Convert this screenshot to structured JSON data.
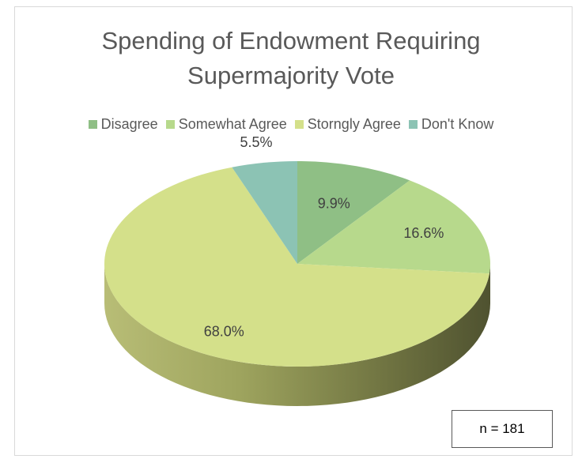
{
  "chart_data": {
    "type": "pie",
    "title": "Spending of Endowment Requiring Supermajority Vote",
    "title_lines": [
      "Spending of Endowment Requiring",
      "Supermajority Vote"
    ],
    "legend_position": "top",
    "categories": [
      "Disagree",
      "Somewhat Agree",
      "Storngly Agree",
      "Don't Know"
    ],
    "values": [
      9.9,
      16.6,
      68.0,
      5.5
    ],
    "data_labels": [
      "9.9%",
      "16.6%",
      "68.0%",
      "5.5%"
    ],
    "colors": [
      "#8fbf85",
      "#b7d98c",
      "#d4e08a",
      "#8cc3b4"
    ],
    "side_colors": [
      "#6a8c5f",
      "#829c5c",
      "#97a35a",
      "#5f8d80"
    ],
    "annotation": "n = 181",
    "three_d": true
  }
}
